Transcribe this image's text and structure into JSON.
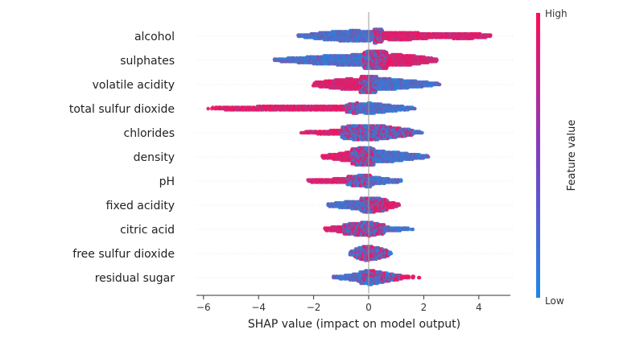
{
  "chart_data": {
    "type": "scatter",
    "subtype": "shap-beeswarm",
    "title": "",
    "xlabel": "SHAP value (impact on model output)",
    "xlim": [
      -6.3,
      5.0
    ],
    "x_ticks": [
      -6,
      -4,
      -2,
      0,
      2,
      4
    ],
    "x_tick_labels": [
      "−6",
      "−4",
      "−2",
      "0",
      "2",
      "4"
    ],
    "colorbar": {
      "title": "Feature value",
      "high_label": "High",
      "low_label": "Low",
      "low_color": "#1E88E5",
      "high_color": "#FF0D57"
    },
    "features": [
      {
        "name": "alcohol",
        "min": -3.1,
        "max": 4.9,
        "low_side": [
          [
            -2.7,
            1
          ],
          [
            -2.2,
            3
          ],
          [
            -1.6,
            6
          ],
          [
            -1.0,
            8
          ],
          [
            -0.5,
            9
          ],
          [
            0.0,
            8
          ],
          [
            0.5,
            5
          ]
        ],
        "high_side": [
          [
            0.2,
            5
          ],
          [
            0.8,
            6
          ],
          [
            1.5,
            6
          ],
          [
            2.2,
            4
          ],
          [
            3.0,
            4
          ],
          [
            3.6,
            5
          ],
          [
            4.1,
            3
          ],
          [
            4.6,
            1
          ]
        ]
      },
      {
        "name": "sulphates",
        "min": -3.9,
        "max": 2.8,
        "low_side": [
          [
            -3.6,
            1
          ],
          [
            -3.0,
            3
          ],
          [
            -2.3,
            5
          ],
          [
            -1.6,
            7
          ],
          [
            -1.0,
            8
          ],
          [
            -0.4,
            9
          ],
          [
            0.2,
            8
          ],
          [
            0.7,
            5
          ]
        ],
        "high_side": [
          [
            -0.2,
            5
          ],
          [
            0.4,
            8
          ],
          [
            1.0,
            9
          ],
          [
            1.5,
            8
          ],
          [
            2.0,
            5
          ],
          [
            2.5,
            2
          ]
        ]
      },
      {
        "name": "volatile acidity",
        "min": -2.1,
        "max": 2.8,
        "low_side": [
          [
            -0.3,
            6
          ],
          [
            0.2,
            9
          ],
          [
            0.7,
            9
          ],
          [
            1.2,
            7
          ],
          [
            1.7,
            5
          ],
          [
            2.2,
            3
          ],
          [
            2.6,
            1
          ]
        ],
        "high_side": [
          [
            -2.0,
            3
          ],
          [
            -1.6,
            5
          ],
          [
            -1.2,
            7
          ],
          [
            -0.7,
            9
          ],
          [
            -0.2,
            7
          ],
          [
            0.3,
            4
          ]
        ]
      },
      {
        "name": "total sulfur dioxide",
        "min": -5.9,
        "max": 1.8,
        "low_side": [
          [
            -0.8,
            3
          ],
          [
            -0.4,
            6
          ],
          [
            0.0,
            9
          ],
          [
            0.4,
            7
          ],
          [
            0.8,
            5
          ],
          [
            1.3,
            3
          ],
          [
            1.7,
            1
          ]
        ],
        "high_side": [
          [
            -5.9,
            1
          ],
          [
            -5.4,
            2
          ],
          [
            -4.8,
            3
          ],
          [
            -4.2,
            3
          ],
          [
            -3.5,
            4
          ],
          [
            -2.8,
            4
          ],
          [
            -2.2,
            4
          ],
          [
            -1.6,
            4
          ],
          [
            -1.0,
            4
          ],
          [
            -0.4,
            3
          ]
        ]
      },
      {
        "name": "chlorides",
        "min": -2.6,
        "max": 2.1,
        "low_side": [
          [
            -1.0,
            5
          ],
          [
            -0.5,
            8
          ],
          [
            0.0,
            9
          ],
          [
            0.5,
            8
          ],
          [
            1.0,
            5
          ],
          [
            1.5,
            3
          ],
          [
            2.0,
            1
          ]
        ],
        "high_side": [
          [
            -2.5,
            1
          ],
          [
            -2.0,
            2
          ],
          [
            -1.5,
            3
          ],
          [
            -1.0,
            4
          ],
          [
            -0.5,
            4
          ],
          [
            0.0,
            3
          ],
          [
            0.7,
            3
          ],
          [
            1.6,
            2
          ]
        ]
      },
      {
        "name": "density",
        "min": -1.8,
        "max": 2.3,
        "low_side": [
          [
            -0.6,
            5
          ],
          [
            -0.1,
            8
          ],
          [
            0.4,
            9
          ],
          [
            0.9,
            8
          ],
          [
            1.4,
            5
          ],
          [
            1.9,
            3
          ],
          [
            2.2,
            1
          ]
        ],
        "high_side": [
          [
            -1.7,
            2
          ],
          [
            -1.3,
            4
          ],
          [
            -0.8,
            7
          ],
          [
            -0.3,
            8
          ],
          [
            0.2,
            5
          ]
        ]
      },
      {
        "name": "pH",
        "min": -2.3,
        "max": 1.4,
        "low_side": [
          [
            -0.8,
            3
          ],
          [
            -0.3,
            5
          ],
          [
            0.0,
            7
          ],
          [
            0.4,
            5
          ],
          [
            0.8,
            3
          ],
          [
            1.2,
            2
          ]
        ],
        "high_side": [
          [
            -2.2,
            2
          ],
          [
            -1.8,
            3
          ],
          [
            -1.4,
            3
          ],
          [
            -0.9,
            4
          ],
          [
            -0.4,
            4
          ],
          [
            0.1,
            3
          ]
        ]
      },
      {
        "name": "fixed acidity",
        "min": -1.6,
        "max": 1.2,
        "low_side": [
          [
            -1.5,
            2
          ],
          [
            -1.1,
            4
          ],
          [
            -0.6,
            6
          ],
          [
            -0.1,
            7
          ],
          [
            0.3,
            5
          ],
          [
            0.7,
            3
          ]
        ],
        "high_side": [
          [
            -0.3,
            4
          ],
          [
            0.1,
            6
          ],
          [
            0.5,
            6
          ],
          [
            0.9,
            4
          ],
          [
            1.1,
            2
          ]
        ]
      },
      {
        "name": "citric acid",
        "min": -1.7,
        "max": 1.7,
        "low_side": [
          [
            -0.9,
            3
          ],
          [
            -0.4,
            5
          ],
          [
            0.0,
            7
          ],
          [
            0.4,
            5
          ],
          [
            0.8,
            3
          ],
          [
            1.3,
            2
          ],
          [
            1.6,
            1
          ]
        ],
        "high_side": [
          [
            -1.6,
            2
          ],
          [
            -1.2,
            4
          ],
          [
            -0.8,
            5
          ],
          [
            -0.3,
            5
          ],
          [
            0.2,
            4
          ],
          [
            0.6,
            3
          ]
        ]
      },
      {
        "name": "free sulfur dioxide",
        "min": -0.8,
        "max": 0.9,
        "low_side": [
          [
            -0.7,
            3
          ],
          [
            -0.4,
            5
          ],
          [
            -0.1,
            7
          ],
          [
            0.2,
            6
          ],
          [
            0.5,
            4
          ],
          [
            0.8,
            2
          ]
        ],
        "high_side": [
          [
            -0.5,
            3
          ],
          [
            -0.1,
            5
          ],
          [
            0.3,
            4
          ],
          [
            0.7,
            2
          ]
        ]
      },
      {
        "name": "residual sugar",
        "min": -1.5,
        "max": 1.9,
        "low_side": [
          [
            -1.4,
            1
          ],
          [
            -0.9,
            3
          ],
          [
            -0.4,
            6
          ],
          [
            0.0,
            8
          ],
          [
            0.4,
            6
          ],
          [
            0.8,
            3
          ],
          [
            1.2,
            1
          ]
        ],
        "high_side": [
          [
            -0.3,
            3
          ],
          [
            0.1,
            4
          ],
          [
            0.5,
            3
          ],
          [
            1.9,
            1
          ]
        ]
      }
    ]
  }
}
